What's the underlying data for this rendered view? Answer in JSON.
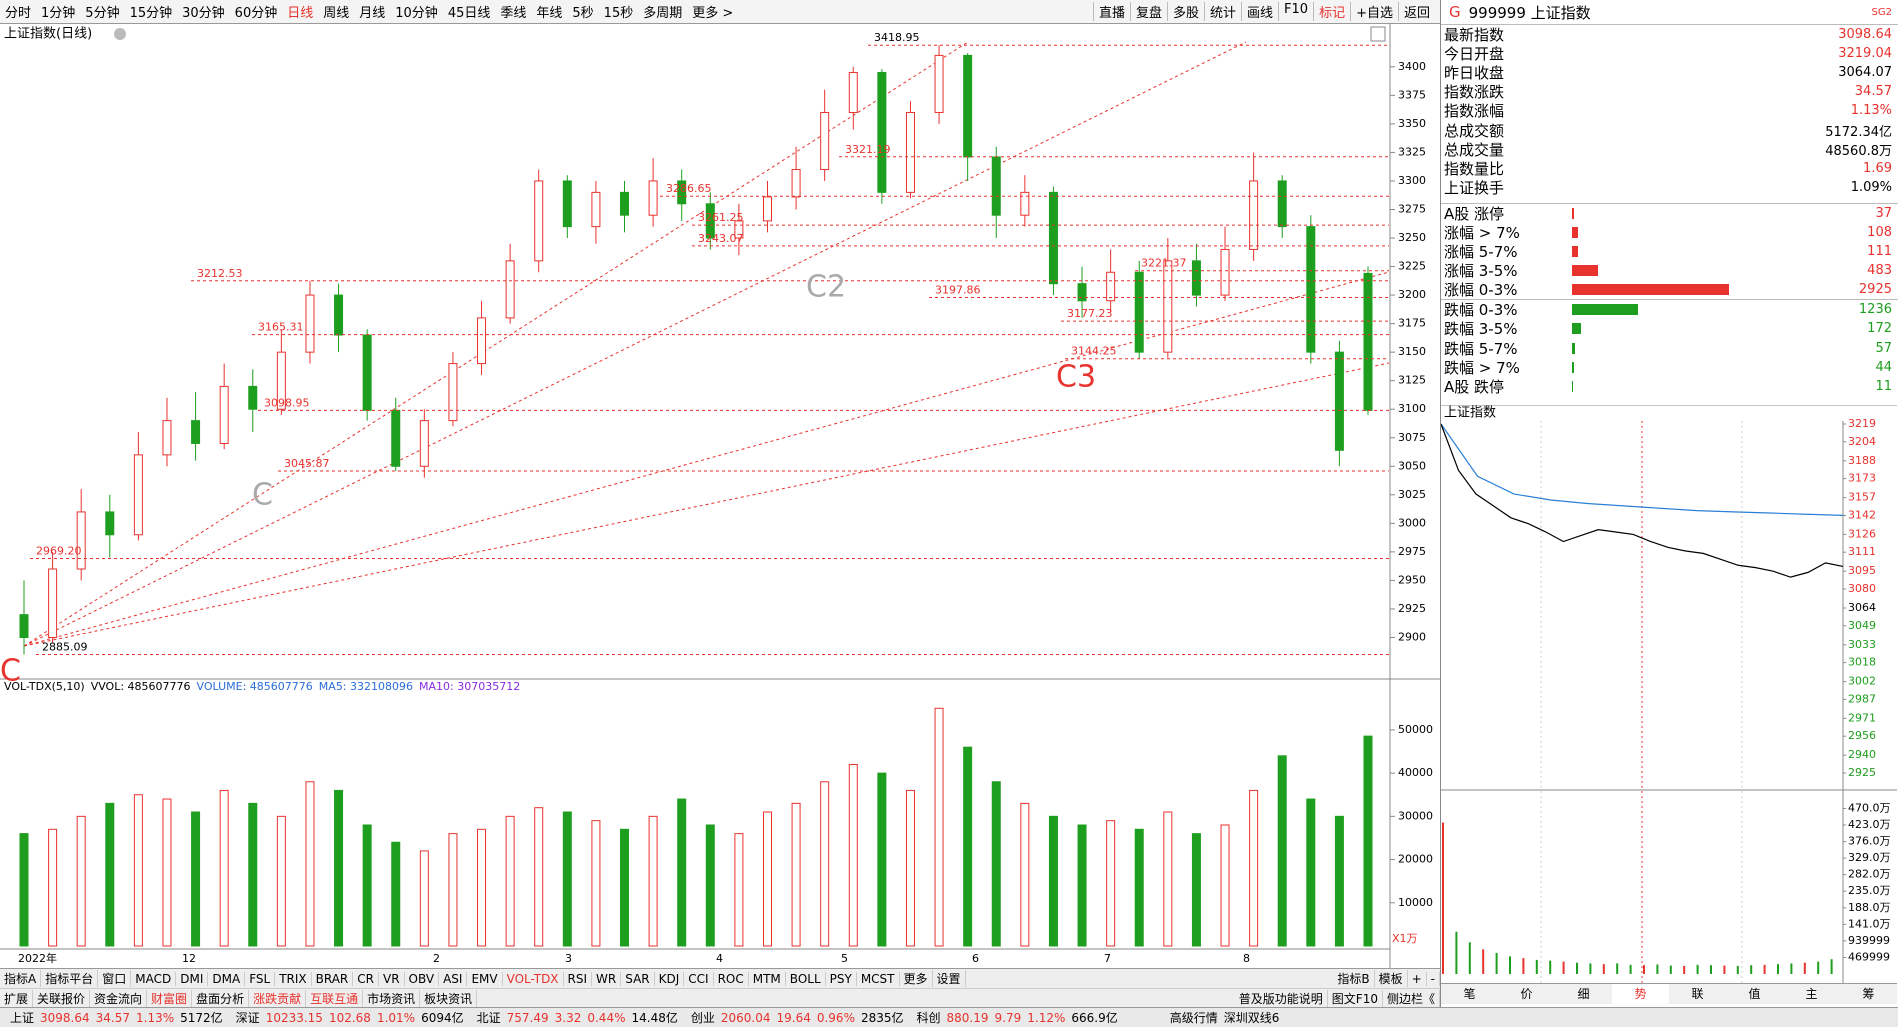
{
  "toolbar": {
    "periods": [
      "分时",
      "1分钟",
      "5分钟",
      "15分钟",
      "30分钟",
      "60分钟",
      "日线",
      "周线",
      "月线",
      "10分钟",
      "45日线",
      "季线",
      "年线",
      "5秒",
      "15秒",
      "多周期",
      "更多 >"
    ],
    "tools": [
      "直播",
      "复盘",
      "多股",
      "统计",
      "画线",
      "F10",
      "标记",
      "+自选",
      "返回"
    ]
  },
  "main_chart": {
    "title": "上证指数(日线)",
    "ylim": [
      2868,
      3420
    ],
    "yticks": [
      2900,
      2925,
      2950,
      2975,
      3000,
      3025,
      3050,
      3075,
      3100,
      3125,
      3150,
      3175,
      3200,
      3225,
      3250,
      3275,
      3300,
      3325,
      3350,
      3375,
      3400
    ],
    "candles": [
      [
        2920,
        2900,
        2950,
        2885.09
      ],
      [
        2900,
        2960,
        2975,
        2895
      ],
      [
        2960,
        3010,
        3030,
        2950
      ],
      [
        3010,
        2990,
        3025,
        2970
      ],
      [
        2990,
        3060,
        3080,
        2985
      ],
      [
        3060,
        3090,
        3110,
        3050
      ],
      [
        3090,
        3070,
        3115,
        3055
      ],
      [
        3070,
        3120,
        3140,
        3065
      ],
      [
        3120,
        3100,
        3135,
        3080
      ],
      [
        3100,
        3150,
        3170,
        3095
      ],
      [
        3150,
        3200,
        3212.53,
        3140
      ],
      [
        3200,
        3165,
        3210,
        3150
      ],
      [
        3165,
        3099,
        3170,
        3090
      ],
      [
        3099,
        3050,
        3110,
        3045.87
      ],
      [
        3050,
        3090,
        3100,
        3040
      ],
      [
        3090,
        3140,
        3150,
        3085
      ],
      [
        3140,
        3180,
        3195,
        3130
      ],
      [
        3180,
        3230,
        3245,
        3175
      ],
      [
        3230,
        3300,
        3310,
        3220
      ],
      [
        3300,
        3260,
        3305,
        3250
      ],
      [
        3260,
        3290,
        3300,
        3245
      ],
      [
        3290,
        3270,
        3300,
        3255
      ],
      [
        3270,
        3300,
        3320,
        3260
      ],
      [
        3300,
        3280,
        3310,
        3265
      ],
      [
        3280,
        3250,
        3290,
        3240
      ],
      [
        3250,
        3265,
        3280,
        3235
      ],
      [
        3265,
        3286,
        3300,
        3255
      ],
      [
        3286,
        3310,
        3330,
        3275
      ],
      [
        3310,
        3360,
        3380,
        3300
      ],
      [
        3360,
        3395,
        3400,
        3345
      ],
      [
        3395,
        3290,
        3398,
        3280
      ],
      [
        3290,
        3360,
        3370,
        3285
      ],
      [
        3360,
        3410,
        3418.95,
        3350
      ],
      [
        3410,
        3321,
        3412,
        3300
      ],
      [
        3321,
        3270,
        3330,
        3250
      ],
      [
        3270,
        3290,
        3305,
        3260
      ],
      [
        3290,
        3210,
        3295,
        3200
      ],
      [
        3210,
        3195,
        3225,
        3180
      ],
      [
        3195,
        3220,
        3240,
        3185
      ],
      [
        3220,
        3150,
        3230,
        3144.25
      ],
      [
        3150,
        3230,
        3250,
        3145
      ],
      [
        3230,
        3200,
        3245,
        3190
      ],
      [
        3200,
        3240,
        3260,
        3195
      ],
      [
        3240,
        3300,
        3325,
        3230
      ],
      [
        3300,
        3260,
        3305,
        3250
      ],
      [
        3260,
        3150,
        3270,
        3140
      ],
      [
        3150,
        3064,
        3160,
        3050
      ],
      [
        3219,
        3099,
        3225,
        3095
      ]
    ],
    "annotations": [
      3418.95,
      3321.19,
      3286.65,
      3261.25,
      3243.07,
      3212.53,
      3165.31,
      3098.95,
      3045.87,
      {
        "value": 2969.2,
        "label": "2969.20"
      },
      2885.09,
      3197.86,
      3177.23,
      3144.25,
      3221.37
    ],
    "markers": [
      "C",
      "C",
      "C2",
      "C3"
    ],
    "dates": [
      "2022年",
      "12",
      "2",
      "3",
      "4",
      "5",
      "6",
      "7",
      "8"
    ]
  },
  "volume_chart": {
    "indicator": "VOL-TDX(5,10)",
    "vvol": "VVOL: 485607776",
    "volume": "VOLUME: 485607776",
    "ma5": "MA5: 332108096",
    "ma10": "MA10: 307035712",
    "unit": "X1万",
    "ylim": [
      0,
      59000
    ],
    "yticks": [
      10000,
      20000,
      30000,
      40000,
      50000
    ],
    "values": [
      26000,
      27000,
      30000,
      33000,
      35000,
      34000,
      31000,
      36000,
      33000,
      30000,
      38000,
      36000,
      28000,
      24000,
      22000,
      26000,
      27000,
      30000,
      32000,
      31000,
      29000,
      27000,
      30000,
      34000,
      28000,
      26000,
      31000,
      33000,
      38000,
      42000,
      40000,
      36000,
      55000,
      46000,
      38000,
      33000,
      30000,
      28000,
      29000,
      27000,
      31000,
      26000,
      28000,
      36000,
      44000,
      34000,
      30000,
      48560
    ]
  },
  "tabs": {
    "row1": [
      "指标A",
      "指标平台",
      "窗口",
      "MACD",
      "DMI",
      "DMA",
      "FSL",
      "TRIX",
      "BRAR",
      "CR",
      "VR",
      "OBV",
      "ASI",
      "EMV",
      "VOL-TDX",
      "RSI",
      "WR",
      "SAR",
      "KDJ",
      "CCI",
      "ROC",
      "MTM",
      "BOLL",
      "PSY",
      "MCST",
      "更多",
      "设置"
    ],
    "row1_right": [
      "指标B",
      "模板",
      "+",
      "-"
    ],
    "row2": [
      "扩展",
      "关联报价",
      "资金流向",
      "财富圈",
      "盘面分析",
      "涨跌贡献",
      "互联互通",
      "市场资讯",
      "板块资讯"
    ],
    "row2_right": [
      "普及版功能说明",
      "图文F10",
      "侧边栏《"
    ]
  },
  "quote_panel": {
    "flag": "G",
    "code": "999999 上证指数",
    "tag": "SG2",
    "rows": [
      {
        "label": "最新指数",
        "value": "3098.64",
        "color": "#e8322d"
      },
      {
        "label": "今日开盘",
        "value": "3219.04",
        "color": "#e8322d"
      },
      {
        "label": "昨日收盘",
        "value": "3064.07",
        "color": "#000"
      },
      {
        "label": "指数涨跌",
        "value": "34.57",
        "color": "#e8322d"
      },
      {
        "label": "指数涨幅",
        "value": "1.13%",
        "color": "#e8322d"
      },
      {
        "label": "总成交额",
        "value": "5172.34亿",
        "color": "#000"
      },
      {
        "label": "总成交量",
        "value": "48560.8万",
        "color": "#000"
      },
      {
        "label": "指数量比",
        "value": "1.69",
        "color": "#e8322d"
      },
      {
        "label": "上证换手",
        "value": "1.09%",
        "color": "#000"
      }
    ],
    "breadth": [
      {
        "label": "A股 涨停",
        "count": 37,
        "color": "#e8322d"
      },
      {
        "label": "涨幅 > 7%",
        "count": 108,
        "color": "#e8322d"
      },
      {
        "label": "涨幅 5-7%",
        "count": 111,
        "color": "#e8322d"
      },
      {
        "label": "涨幅 3-5%",
        "count": 483,
        "color": "#e8322d"
      },
      {
        "label": "涨幅 0-3%",
        "count": 2925,
        "color": "#e8322d"
      },
      {
        "label": "跌幅 0-3%",
        "count": 1236,
        "color": "#1e9e1e"
      },
      {
        "label": "跌幅 3-5%",
        "count": 172,
        "color": "#1e9e1e"
      },
      {
        "label": "跌幅 5-7%",
        "count": 57,
        "color": "#1e9e1e"
      },
      {
        "label": "跌幅 > 7%",
        "count": 44,
        "color": "#1e9e1e"
      },
      {
        "label": "A股 跌停",
        "count": 11,
        "color": "#1e9e1e"
      }
    ]
  },
  "intraday": {
    "title": "上证指数",
    "ylim": [
      2925,
      3219
    ],
    "yticks": [
      3219,
      3204,
      3188,
      3173,
      3157,
      3142,
      3126,
      3111,
      3095,
      3080,
      3064,
      3049,
      3033,
      3018,
      3002,
      2987,
      2971,
      2956,
      2940,
      2925
    ],
    "price": [
      3219,
      3180,
      3160,
      3150,
      3140,
      3135,
      3128,
      3120,
      3125,
      3130,
      3128,
      3126,
      3120,
      3115,
      3112,
      3110,
      3105,
      3100,
      3098,
      3095,
      3090,
      3094,
      3102,
      3099
    ],
    "average": [
      3219,
      3175,
      3160,
      3155,
      3152,
      3150,
      3148,
      3146,
      3145,
      3144,
      3143,
      3142
    ],
    "vol_ylim": [
      0,
      4940000
    ],
    "vol_ticks": [
      {
        "value": 4700000,
        "label": "470.0万"
      },
      {
        "value": 4230000,
        "label": "423.0万"
      },
      {
        "value": 3760000,
        "label": "376.0万"
      },
      {
        "value": 3290000,
        "label": "329.0万"
      },
      {
        "value": 2820000,
        "label": "282.0万"
      },
      {
        "value": 2350000,
        "label": "235.0万"
      },
      {
        "value": 1880000,
        "label": "188.0万"
      },
      {
        "value": 1410000,
        "label": "141.0万"
      },
      939999,
      469999
    ],
    "volume": [
      4300000,
      1200000,
      900000,
      700000,
      600000,
      500000,
      450000,
      400000,
      380000,
      350000,
      320000,
      300000,
      280000,
      300000,
      260000,
      250000,
      270000,
      240000,
      230000,
      260000,
      250000,
      240000,
      230000,
      250000,
      260000,
      280000,
      300000,
      320000,
      350000,
      420000
    ],
    "tabs": [
      "笔",
      "价",
      "细",
      "势",
      "联",
      "值",
      "主",
      "筹"
    ]
  },
  "status_bar": {
    "items": [
      {
        "name": "上证",
        "price": "3098.64",
        "change": "34.57",
        "pct": "1.13%",
        "amount": "5172亿"
      },
      {
        "name": "深证",
        "price": "10233.15",
        "change": "102.68",
        "pct": "1.01%",
        "amount": "6094亿"
      },
      {
        "name": "北证",
        "price": "757.49",
        "change": "3.32",
        "pct": "0.44%",
        "amount": "14.48亿"
      },
      {
        "name": "创业",
        "price": "2060.04",
        "change": "19.64",
        "pct": "0.96%",
        "amount": "2835亿"
      },
      {
        "name": "科创",
        "price": "880.19",
        "change": "9.79",
        "pct": "1.12%",
        "amount": "666.9亿"
      }
    ],
    "extras": [
      "高级行情",
      "深圳双线6"
    ]
  }
}
